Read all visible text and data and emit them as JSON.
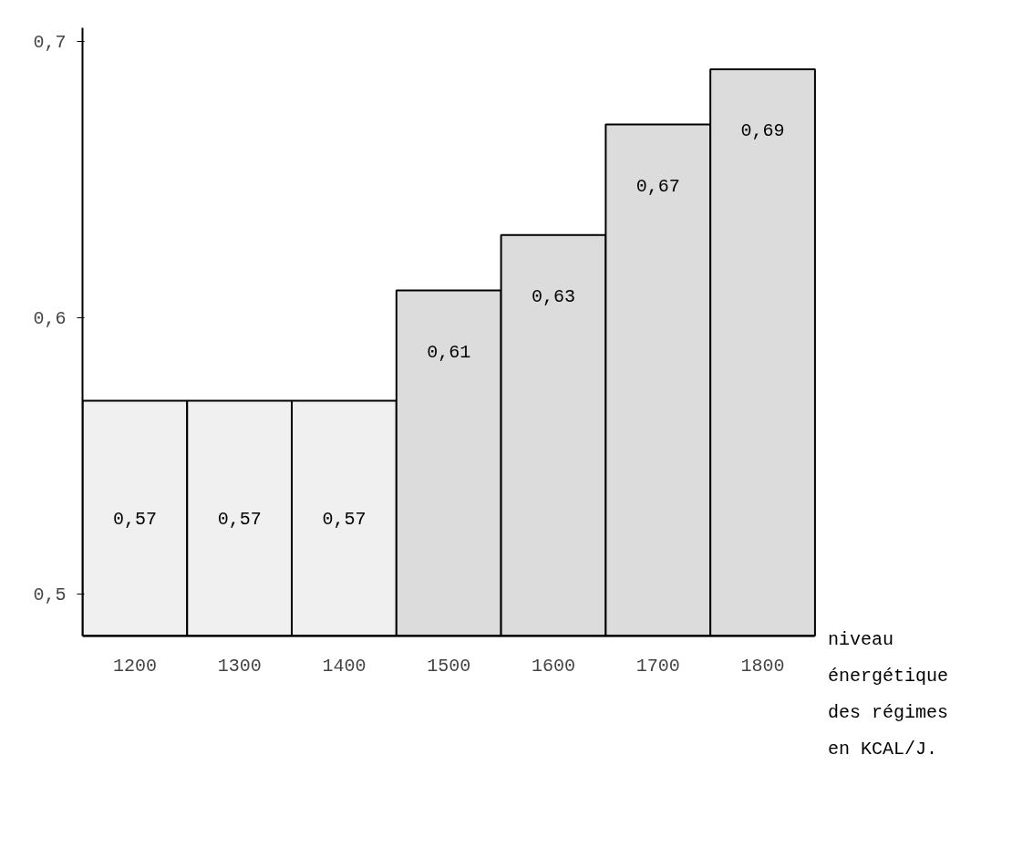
{
  "chart_data": {
    "type": "bar",
    "xlabel": "niveau énergétique des régimes en KCAL/J.",
    "categories": [
      "1200",
      "1300",
      "1400",
      "1500",
      "1600",
      "1700",
      "1800"
    ],
    "values": [
      0.57,
      0.57,
      0.57,
      0.61,
      0.63,
      0.67,
      0.69
    ],
    "colors": [
      "#f0f0f0",
      "#f0f0f0",
      "#f0f0f0",
      "#dcdcdc",
      "#dcdcdc",
      "#dcdcdc",
      "#dcdcdc"
    ],
    "value_labels": [
      "0,57",
      "0,57",
      "0,57",
      "0,61",
      "0,63",
      "0,67",
      "0,69"
    ],
    "ylim": [
      0.485,
      0.705
    ],
    "yticks": [
      {
        "value": 0.5,
        "label": "0,5"
      },
      {
        "value": 0.6,
        "label": "0,6"
      },
      {
        "value": 0.7,
        "label": "0,7"
      }
    ],
    "grid": false
  }
}
